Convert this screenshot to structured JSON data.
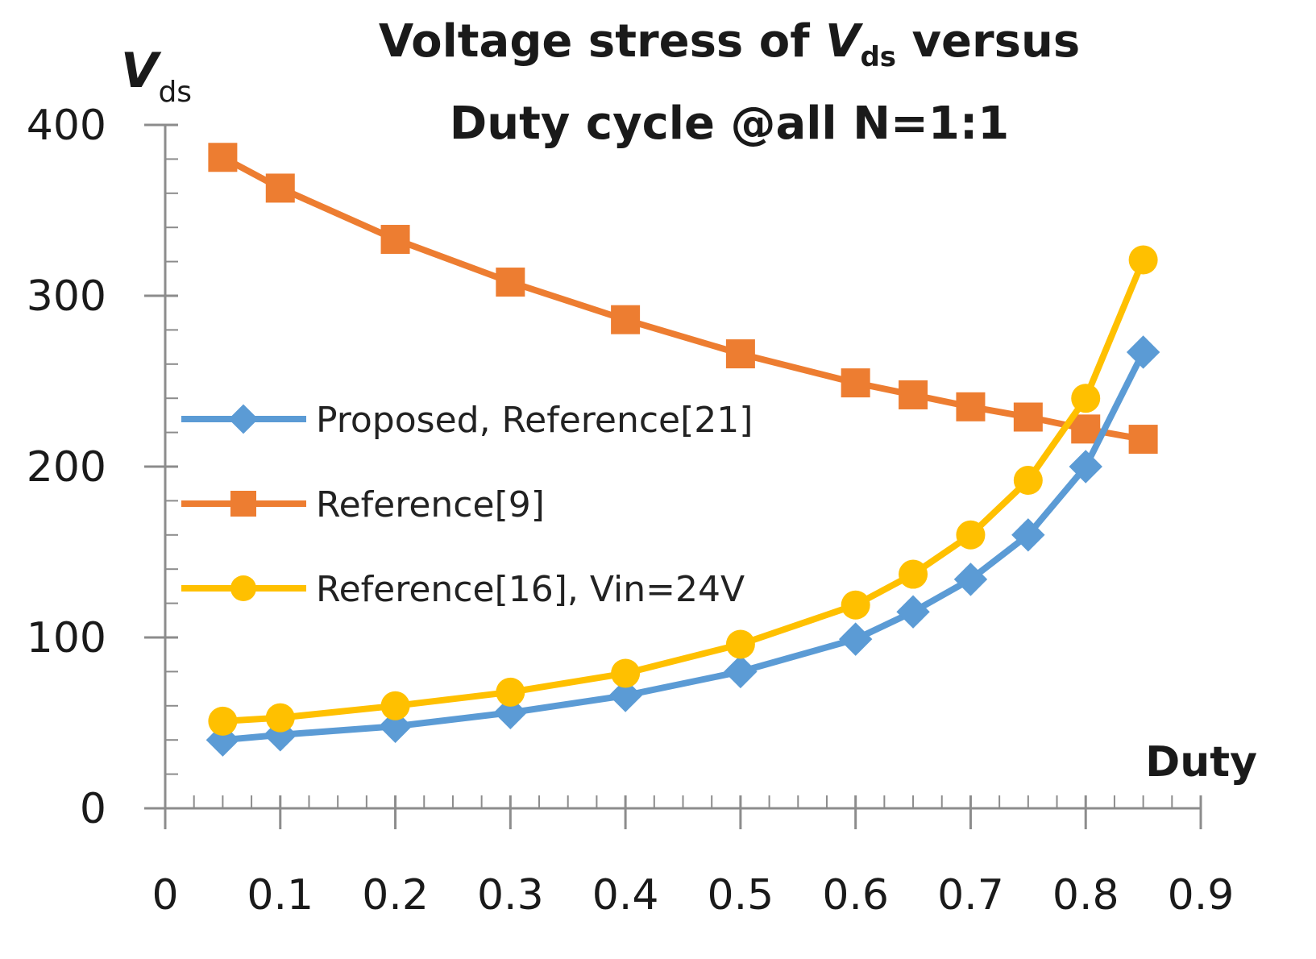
{
  "chart_data": {
    "type": "line",
    "title": {
      "line1_pre": "Voltage stress of ",
      "var": "V",
      "sub": "ds",
      "line1_post": " versus",
      "line2": "Duty cycle @all N=1:1"
    },
    "ylabel": {
      "var": "V",
      "sub": "ds"
    },
    "xlabel": "Duty",
    "xlim": [
      0,
      0.9
    ],
    "ylim": [
      0,
      400
    ],
    "x_ticks": [
      "0",
      "0.1",
      "0.2",
      "0.3",
      "0.4",
      "0.5",
      "0.6",
      "0.7",
      "0.8",
      "0.9"
    ],
    "y_ticks": [
      "0",
      "100",
      "200",
      "300",
      "400"
    ],
    "x_minor_step": 0.025,
    "y_minor_step": 20,
    "grid": false,
    "legend_position": "left-middle",
    "series": [
      {
        "name": "Proposed, Reference[21]",
        "color": "#5b9bd5",
        "marker": "diamond",
        "x": [
          0.05,
          0.1,
          0.2,
          0.3,
          0.4,
          0.5,
          0.6,
          0.65,
          0.7,
          0.75,
          0.8,
          0.85
        ],
        "values": [
          40,
          43,
          48,
          56,
          66,
          80,
          99,
          115,
          134,
          160,
          200,
          267
        ]
      },
      {
        "name": "Reference[9]",
        "color": "#ed7d31",
        "marker": "square",
        "x": [
          0.05,
          0.1,
          0.2,
          0.3,
          0.4,
          0.5,
          0.6,
          0.65,
          0.7,
          0.75,
          0.8,
          0.85
        ],
        "values": [
          381,
          363,
          333,
          308,
          286,
          266,
          249,
          242,
          235,
          229,
          222,
          216
        ]
      },
      {
        "name": "Reference[16], Vin=24V",
        "color": "#ffc000",
        "marker": "circle",
        "x": [
          0.05,
          0.1,
          0.2,
          0.3,
          0.4,
          0.5,
          0.6,
          0.65,
          0.7,
          0.75,
          0.8,
          0.85
        ],
        "values": [
          51,
          53,
          60,
          68,
          79,
          96,
          119,
          137,
          160,
          192,
          240,
          321
        ]
      }
    ]
  }
}
